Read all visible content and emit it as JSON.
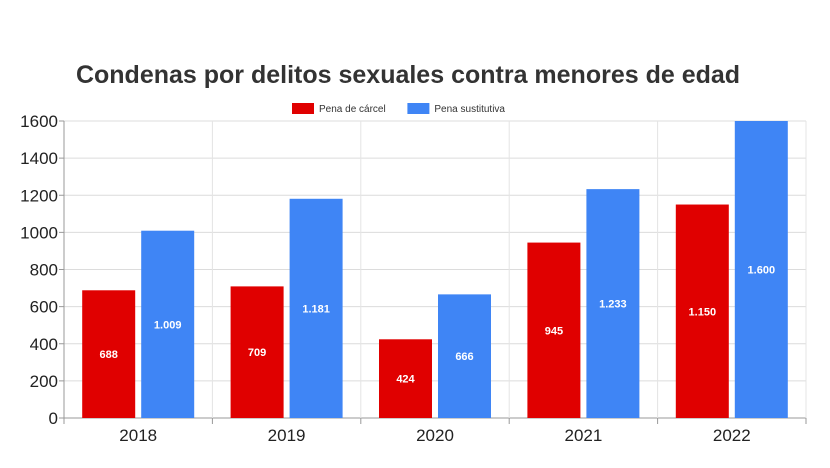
{
  "chart_data": {
    "type": "bar",
    "title": "Condenas por delitos sexuales contra menores de edad",
    "categories": [
      "2018",
      "2019",
      "2020",
      "2021",
      "2022"
    ],
    "series": [
      {
        "name": "Pena de cárcel",
        "color": "#e00000",
        "values": [
          688,
          709,
          424,
          945,
          1150
        ],
        "labels": [
          "688",
          "709",
          "424",
          "945",
          "1.150"
        ]
      },
      {
        "name": "Pena sustitutiva",
        "color": "#3f85f5",
        "values": [
          1009,
          1181,
          666,
          1233,
          1600
        ],
        "labels": [
          "1.009",
          "1.181",
          "666",
          "1.233",
          "1.600"
        ]
      }
    ],
    "ylim": [
      0,
      1600
    ],
    "yticks": [
      "0",
      "200",
      "400",
      "600",
      "800",
      "1000",
      "1200",
      "1400",
      "1600"
    ],
    "ytick_values": [
      0,
      200,
      400,
      600,
      800,
      1000,
      1200,
      1400,
      1600
    ],
    "xlabel": "",
    "ylabel": "",
    "grid": true,
    "legend_position": "top-center"
  }
}
